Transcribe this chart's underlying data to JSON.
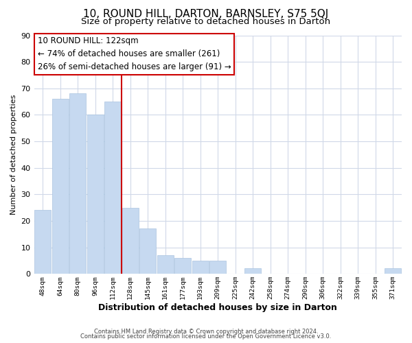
{
  "title": "10, ROUND HILL, DARTON, BARNSLEY, S75 5QJ",
  "subtitle": "Size of property relative to detached houses in Darton",
  "xlabel": "Distribution of detached houses by size in Darton",
  "ylabel": "Number of detached properties",
  "bar_labels": [
    "48sqm",
    "64sqm",
    "80sqm",
    "96sqm",
    "112sqm",
    "128sqm",
    "145sqm",
    "161sqm",
    "177sqm",
    "193sqm",
    "209sqm",
    "225sqm",
    "242sqm",
    "258sqm",
    "274sqm",
    "290sqm",
    "306sqm",
    "322sqm",
    "339sqm",
    "355sqm",
    "371sqm"
  ],
  "bar_values": [
    24,
    66,
    68,
    60,
    65,
    25,
    17,
    7,
    6,
    5,
    5,
    0,
    2,
    0,
    0,
    0,
    0,
    0,
    0,
    0,
    2
  ],
  "bar_color": "#c6d9f0",
  "bar_edge_color": "#aac4e0",
  "property_line_x": 4.5,
  "property_line_color": "#cc0000",
  "annotation_box_text": "10 ROUND HILL: 122sqm\n← 74% of detached houses are smaller (261)\n26% of semi-detached houses are larger (91) →",
  "ylim": [
    0,
    90
  ],
  "xlim_left": -0.5,
  "xlim_right": 20.5,
  "grid_color": "#d0d8e8",
  "background_color": "#ffffff",
  "footer_line1": "Contains HM Land Registry data © Crown copyright and database right 2024.",
  "footer_line2": "Contains public sector information licensed under the Open Government Licence v3.0.",
  "title_fontsize": 11,
  "subtitle_fontsize": 9.5,
  "xlabel_fontsize": 9,
  "ylabel_fontsize": 8,
  "annotation_fontsize": 8.5,
  "footer_fontsize": 6,
  "yticks": [
    0,
    10,
    20,
    30,
    40,
    50,
    60,
    70,
    80,
    90
  ]
}
